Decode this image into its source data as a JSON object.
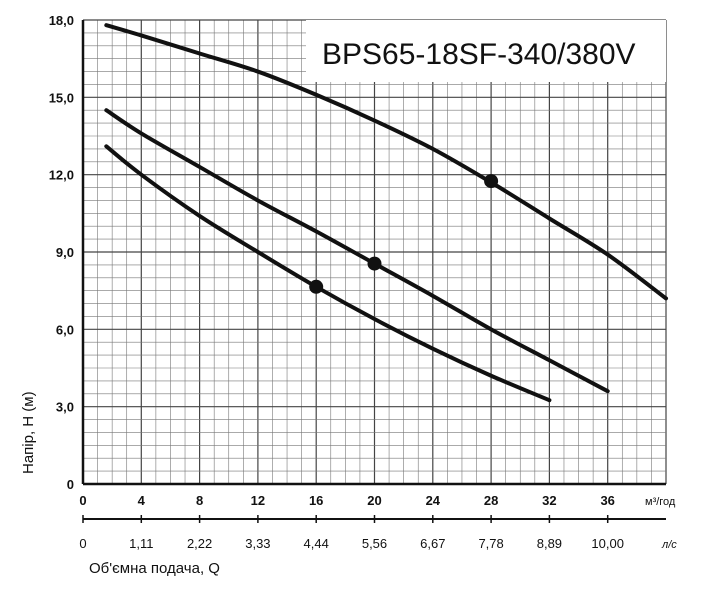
{
  "chart_data": {
    "type": "line",
    "title": "BPS65-18SF-340/380V",
    "ylabel": "Напір, H (м)",
    "xlabel": "Об'ємна подача, Q",
    "x_unit": "м³/год",
    "x2_unit": "л/с",
    "xlim": [
      0,
      40
    ],
    "ylim": [
      0,
      18
    ],
    "y_ticks": [
      "0",
      "3,0",
      "6,0",
      "9,0",
      "12,0",
      "15,0",
      "18,0"
    ],
    "y_tick_values": [
      0,
      3,
      6,
      9,
      12,
      15,
      18
    ],
    "x_ticks": [
      "0",
      "4",
      "8",
      "12",
      "16",
      "20",
      "24",
      "28",
      "32",
      "36"
    ],
    "x_tick_values": [
      0,
      4,
      8,
      12,
      16,
      20,
      24,
      28,
      32,
      36
    ],
    "x2_ticks": [
      "0",
      "1,11",
      "2,22",
      "3,33",
      "4,44",
      "5,56",
      "6,67",
      "7,78",
      "8,89",
      "10,00"
    ],
    "grid": true,
    "series": [
      {
        "x": [
          1.6,
          4,
          8,
          12,
          16,
          20,
          24,
          28,
          32,
          36,
          40
        ],
        "y": [
          17.8,
          17.4,
          16.7,
          16.0,
          15.1,
          14.1,
          13.0,
          11.7,
          10.3,
          8.9,
          7.2
        ],
        "marker": {
          "x": 28,
          "y": 11.75
        }
      },
      {
        "x": [
          1.6,
          4,
          8,
          12,
          16,
          20,
          24,
          28,
          32,
          36
        ],
        "y": [
          14.5,
          13.6,
          12.3,
          11.0,
          9.8,
          8.55,
          7.3,
          6.0,
          4.8,
          3.6
        ],
        "marker": {
          "x": 20,
          "y": 8.55
        }
      },
      {
        "x": [
          1.6,
          4,
          8,
          12,
          16,
          20,
          24,
          28,
          32
        ],
        "y": [
          13.1,
          12.0,
          10.4,
          9.0,
          7.65,
          6.4,
          5.25,
          4.2,
          3.25
        ],
        "marker": {
          "x": 16,
          "y": 7.65
        }
      }
    ]
  }
}
